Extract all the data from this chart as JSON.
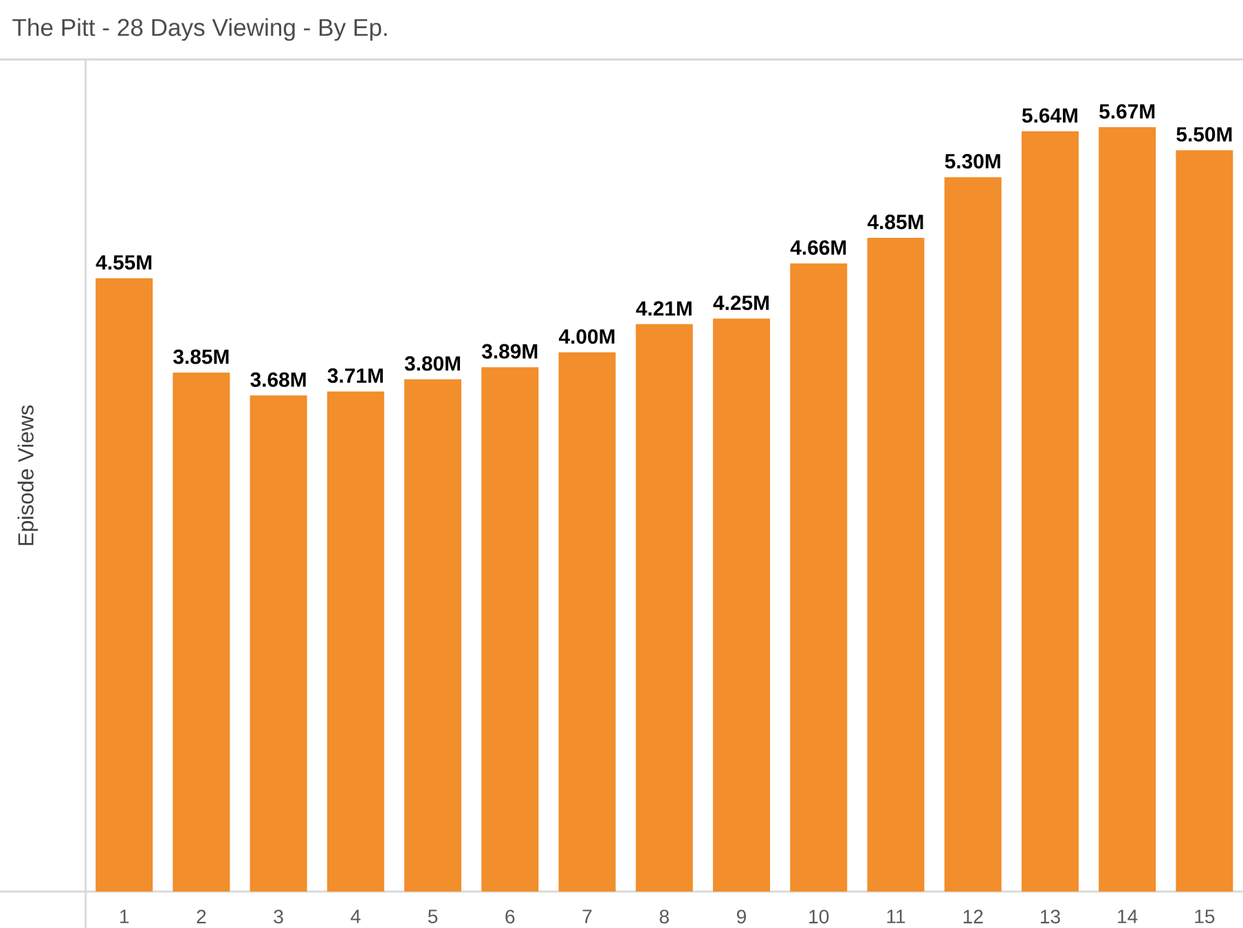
{
  "chart_data": {
    "type": "bar",
    "title": "The Pitt - 28 Days Viewing - By Ep.",
    "ylabel": "Episode Views",
    "categories": [
      "1",
      "2",
      "3",
      "4",
      "5",
      "6",
      "7",
      "8",
      "9",
      "10",
      "11",
      "12",
      "13",
      "14",
      "15"
    ],
    "values": [
      4.55,
      3.85,
      3.68,
      3.71,
      3.8,
      3.89,
      4.0,
      4.21,
      4.25,
      4.66,
      4.85,
      5.3,
      5.64,
      5.67,
      5.5
    ],
    "value_labels": [
      "4.55M",
      "3.85M",
      "3.68M",
      "3.71M",
      "3.80M",
      "3.89M",
      "4.00M",
      "4.21M",
      "4.25M",
      "4.66M",
      "4.85M",
      "5.30M",
      "5.64M",
      "5.67M",
      "5.50M"
    ],
    "color": "#f28e2b",
    "ylim": [
      0,
      6.17
    ],
    "tick_labels": "x"
  }
}
